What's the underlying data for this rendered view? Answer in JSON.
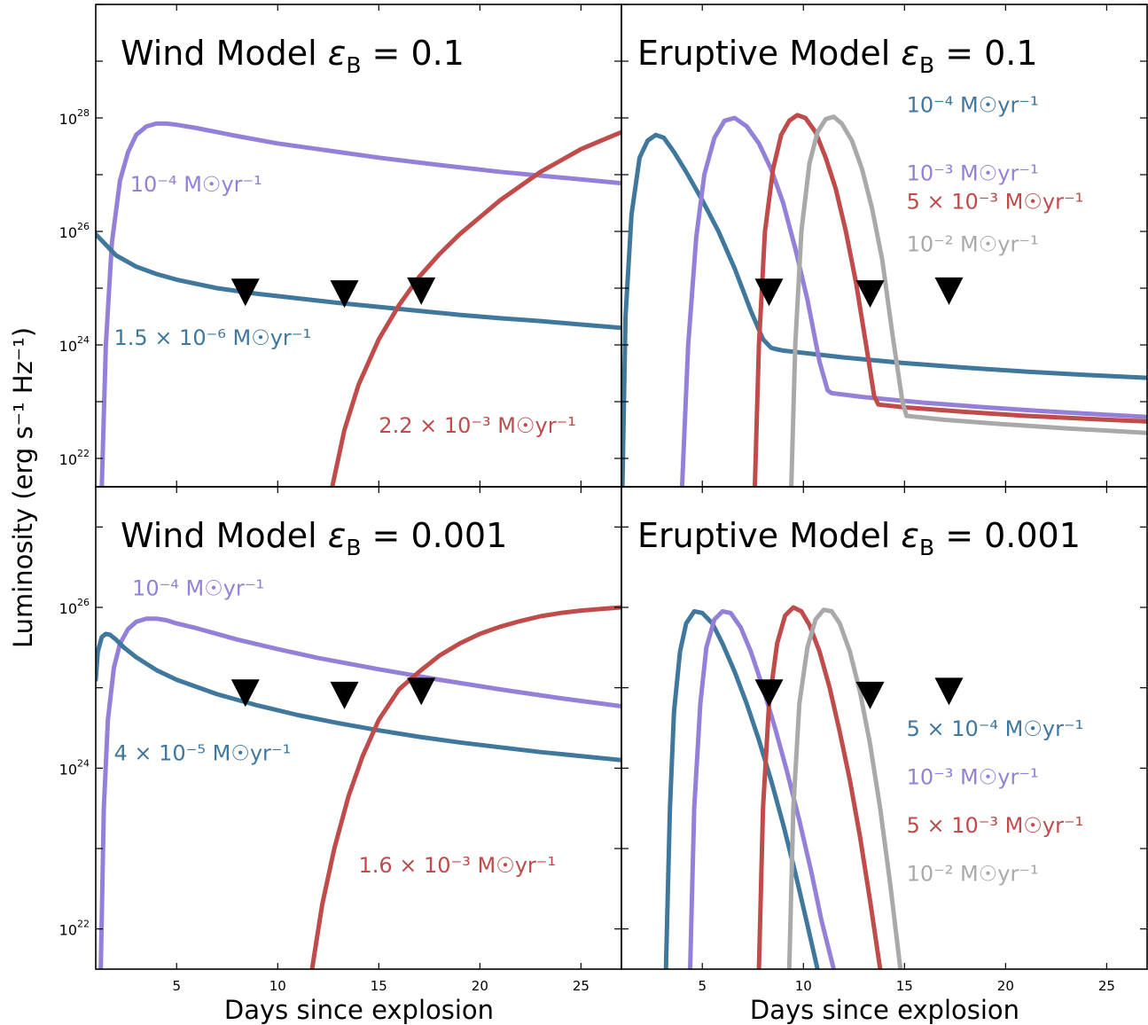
{
  "figure": {
    "ylabel": "Luminosity (erg s⁻¹ Hz⁻¹)",
    "xlabel": "Days since explosion",
    "colors": {
      "blue": "#3f779d",
      "purple": "#9480d8",
      "red": "#bf4b4b",
      "gray": "#a9a9a9",
      "marker": "#000000"
    }
  },
  "chart_data": [
    {
      "type": "line",
      "title_main": "Wind Model",
      "title_eps": "ε",
      "title_sub": "B",
      "title_val": " = 0.1",
      "xlim": [
        1,
        27
      ],
      "ylim_log10": [
        21.5,
        30.0
      ],
      "yscale": "log",
      "xticks": [
        5,
        10,
        15,
        20,
        25
      ],
      "yticks": [
        {
          "pos": 22,
          "base": "10",
          "exp": "22"
        },
        {
          "pos": 24,
          "base": "10",
          "exp": "24"
        },
        {
          "pos": 26,
          "base": "10",
          "exp": "26"
        },
        {
          "pos": 28,
          "base": "10",
          "exp": "28"
        }
      ],
      "series": [
        {
          "color": "#9480d8",
          "x": [
            1.3,
            1.5,
            1.8,
            2.2,
            2.6,
            3.0,
            3.5,
            4.0,
            4.5,
            5.0,
            6,
            8,
            10,
            12,
            15,
            18,
            21,
            24,
            27
          ],
          "log_y": [
            21.5,
            24.0,
            25.8,
            26.9,
            27.4,
            27.7,
            27.85,
            27.9,
            27.9,
            27.88,
            27.82,
            27.68,
            27.55,
            27.45,
            27.3,
            27.17,
            27.05,
            26.95,
            26.85
          ]
        },
        {
          "color": "#3f779d",
          "x": [
            1,
            2,
            3,
            4,
            5,
            7,
            9,
            11,
            13,
            15,
            17,
            19,
            21,
            23,
            25,
            27
          ],
          "log_y": [
            25.95,
            25.58,
            25.38,
            25.25,
            25.15,
            25.0,
            24.9,
            24.82,
            24.74,
            24.67,
            24.6,
            24.53,
            24.47,
            24.42,
            24.36,
            24.3
          ]
        },
        {
          "color": "#bf4b4b",
          "x": [
            12.7,
            13.3,
            14.0,
            15.0,
            16.0,
            17.0,
            18.0,
            19.0,
            20.0,
            21.0,
            22.0,
            23.0,
            24.0,
            25.0,
            26.0,
            27.0
          ],
          "log_y": [
            21.5,
            22.5,
            23.3,
            24.1,
            24.7,
            25.2,
            25.6,
            25.95,
            26.25,
            26.55,
            26.8,
            27.05,
            27.25,
            27.45,
            27.6,
            27.75
          ]
        }
      ],
      "markers": {
        "x": [
          8.4,
          13.3,
          17.1
        ],
        "log_y": [
          24.95,
          24.92,
          24.97
        ]
      },
      "annotations": [
        {
          "text": "10⁻⁴ M☉yr⁻¹",
          "x": 2.7,
          "log_y": 26.7,
          "color": "#9480d8"
        },
        {
          "text": "1.5 × 10⁻⁶ M☉yr⁻¹",
          "x": 1.9,
          "log_y": 24.0,
          "color": "#3f779d"
        },
        {
          "text": "2.2 × 10⁻³ M☉yr⁻¹",
          "x": 15.0,
          "log_y": 22.45,
          "color": "#bf4b4b"
        }
      ]
    },
    {
      "type": "line",
      "title_main": "Eruptive Model",
      "title_eps": "ε",
      "title_sub": "B",
      "title_val": " = 0.1",
      "xlim": [
        1,
        27
      ],
      "ylim_log10": [
        21.5,
        30.0
      ],
      "yscale": "log",
      "xticks": [
        5,
        10,
        15,
        20,
        25
      ],
      "yticks": [],
      "series": [
        {
          "color": "#3f779d",
          "x": [
            1.05,
            1.2,
            1.5,
            1.9,
            2.3,
            2.7,
            3.1,
            3.6,
            4.2,
            5.0,
            5.8,
            6.6,
            7.4,
            8.0,
            8.4,
            8.6,
            9,
            12,
            15,
            18,
            21,
            24,
            27
          ],
          "log_y": [
            21.5,
            24.5,
            26.3,
            27.3,
            27.6,
            27.7,
            27.65,
            27.4,
            27.05,
            26.55,
            26.0,
            25.35,
            24.6,
            24.1,
            23.95,
            23.93,
            23.9,
            23.78,
            23.68,
            23.6,
            23.53,
            23.47,
            23.42
          ]
        },
        {
          "color": "#9480d8",
          "x": [
            4.0,
            4.3,
            4.7,
            5.1,
            5.6,
            6.1,
            6.6,
            7.2,
            7.8,
            8.4,
            9.0,
            9.6,
            10.2,
            10.8,
            11.2,
            11.4,
            13,
            16,
            19,
            22,
            25,
            27
          ],
          "log_y": [
            21.5,
            24.0,
            25.9,
            27.0,
            27.65,
            27.95,
            28.0,
            27.85,
            27.55,
            27.1,
            26.5,
            25.7,
            24.8,
            23.7,
            23.2,
            23.15,
            23.08,
            22.98,
            22.9,
            22.83,
            22.77,
            22.73
          ]
        },
        {
          "color": "#bf4b4b",
          "x": [
            7.6,
            7.8,
            8.1,
            8.5,
            8.9,
            9.3,
            9.7,
            10.1,
            10.6,
            11.1,
            11.6,
            12.1,
            12.6,
            13.1,
            13.5,
            13.7,
            15,
            18,
            21,
            24,
            27
          ],
          "log_y": [
            21.5,
            24.0,
            26.0,
            27.1,
            27.7,
            27.95,
            28.05,
            28.0,
            27.75,
            27.3,
            26.75,
            26.0,
            25.1,
            24.0,
            23.1,
            22.95,
            22.9,
            22.82,
            22.75,
            22.7,
            22.65
          ]
        },
        {
          "color": "#a9a9a9",
          "x": [
            9.4,
            9.6,
            9.9,
            10.3,
            10.7,
            11.1,
            11.5,
            11.9,
            12.4,
            12.9,
            13.4,
            13.9,
            14.4,
            14.9,
            15.1,
            17,
            20,
            23,
            27
          ],
          "log_y": [
            21.5,
            24.0,
            26.0,
            27.2,
            27.75,
            27.98,
            28.02,
            27.9,
            27.6,
            27.1,
            26.4,
            25.5,
            24.2,
            23.0,
            22.75,
            22.68,
            22.6,
            22.53,
            22.45
          ]
        }
      ],
      "markers": {
        "x": [
          8.3,
          13.3,
          17.2
        ],
        "log_y": [
          24.95,
          24.92,
          24.97
        ]
      },
      "annotations": [
        {
          "text": "10⁻⁴ M☉yr⁻¹",
          "x": 15.1,
          "log_y": 28.1,
          "color": "#3f779d"
        },
        {
          "text": "10⁻³ M☉yr⁻¹",
          "x": 15.1,
          "log_y": 26.9,
          "color": "#9480d8"
        },
        {
          "text": "5 × 10⁻³ M☉yr⁻¹",
          "x": 15.1,
          "log_y": 26.4,
          "color": "#bf4b4b"
        },
        {
          "text": "10⁻² M☉yr⁻¹",
          "x": 15.1,
          "log_y": 25.65,
          "color": "#a9a9a9"
        }
      ]
    },
    {
      "type": "line",
      "title_main": "Wind Model",
      "title_eps": "ε",
      "title_sub": "B",
      "title_val": " = 0.001",
      "xlim": [
        1,
        27
      ],
      "ylim_log10": [
        21.5,
        27.5
      ],
      "yscale": "log",
      "xticks": [
        5,
        10,
        15,
        20,
        25
      ],
      "yticks": [
        {
          "pos": 22,
          "base": "10",
          "exp": "22"
        },
        {
          "pos": 24,
          "base": "10",
          "exp": "24"
        },
        {
          "pos": 26,
          "base": "10",
          "exp": "26"
        }
      ],
      "series": [
        {
          "color": "#9480d8",
          "x": [
            1.25,
            1.4,
            1.6,
            1.9,
            2.2,
            2.6,
            3.0,
            3.5,
            4.0,
            4.5,
            5,
            6,
            8,
            10,
            12,
            15,
            18,
            21,
            24,
            27
          ],
          "log_y": [
            21.5,
            23.5,
            24.6,
            25.25,
            25.55,
            25.73,
            25.82,
            25.86,
            25.86,
            25.84,
            25.8,
            25.74,
            25.6,
            25.48,
            25.37,
            25.23,
            25.1,
            24.98,
            24.87,
            24.77
          ]
        },
        {
          "color": "#3f779d",
          "x": [
            1.0,
            1.1,
            1.3,
            1.5,
            1.7,
            2.0,
            2.4,
            3,
            4,
            5,
            7,
            9,
            11,
            13,
            15,
            17,
            19,
            21,
            23,
            25,
            27
          ],
          "log_y": [
            25.1,
            25.45,
            25.63,
            25.67,
            25.66,
            25.6,
            25.5,
            25.38,
            25.22,
            25.1,
            24.92,
            24.78,
            24.66,
            24.56,
            24.47,
            24.39,
            24.32,
            24.26,
            24.2,
            24.15,
            24.1
          ]
        },
        {
          "color": "#bf4b4b",
          "x": [
            11.7,
            12.2,
            12.8,
            13.5,
            14.2,
            15.0,
            16.0,
            17.0,
            18.0,
            19.0,
            20.0,
            21.0,
            22.0,
            23.0,
            24.0,
            25.0,
            26.0,
            27.0
          ],
          "log_y": [
            21.5,
            22.3,
            23.0,
            23.65,
            24.15,
            24.6,
            24.98,
            25.2,
            25.4,
            25.55,
            25.67,
            25.76,
            25.83,
            25.89,
            25.93,
            25.96,
            25.98,
            26.0
          ]
        }
      ],
      "markers": {
        "x": [
          8.4,
          13.3,
          17.1
        ],
        "log_y": [
          24.95,
          24.92,
          24.97
        ]
      },
      "annotations": [
        {
          "text": "10⁻⁴ M☉yr⁻¹",
          "x": 2.8,
          "log_y": 26.15,
          "color": "#9480d8"
        },
        {
          "text": "4 × 10⁻⁵ M☉yr⁻¹",
          "x": 1.9,
          "log_y": 24.1,
          "color": "#3f779d"
        },
        {
          "text": "1.6 × 10⁻³ M☉yr⁻¹",
          "x": 14.0,
          "log_y": 22.7,
          "color": "#bf4b4b"
        }
      ]
    },
    {
      "type": "line",
      "title_main": "Eruptive Model",
      "title_eps": "ε",
      "title_sub": "B",
      "title_val": " = 0.001",
      "xlim": [
        1,
        27
      ],
      "ylim_log10": [
        21.5,
        27.5
      ],
      "yscale": "log",
      "xticks": [
        5,
        10,
        15,
        20,
        25
      ],
      "yticks": [],
      "series": [
        {
          "color": "#3f779d",
          "x": [
            3.2,
            3.4,
            3.6,
            3.9,
            4.2,
            4.6,
            5.0,
            5.5,
            6.0,
            6.6,
            7.2,
            7.8,
            8.4,
            9.0,
            9.6,
            10.2,
            10.7
          ],
          "log_y": [
            21.5,
            23.5,
            24.7,
            25.45,
            25.8,
            25.95,
            25.93,
            25.8,
            25.55,
            25.2,
            24.8,
            24.35,
            23.85,
            23.3,
            22.7,
            22.05,
            21.5
          ]
        },
        {
          "color": "#9480d8",
          "x": [
            4.4,
            4.6,
            4.9,
            5.2,
            5.6,
            6.0,
            6.4,
            6.9,
            7.4,
            8.0,
            8.6,
            9.2,
            9.8,
            10.4,
            10.9,
            11.5
          ],
          "log_y": [
            21.5,
            23.5,
            24.8,
            25.5,
            25.85,
            25.95,
            25.93,
            25.75,
            25.45,
            25.0,
            24.5,
            23.95,
            23.35,
            22.7,
            22.1,
            21.5
          ]
        },
        {
          "color": "#bf4b4b",
          "x": [
            7.8,
            8.0,
            8.3,
            8.7,
            9.1,
            9.5,
            9.9,
            10.3,
            10.8,
            11.3,
            11.8,
            12.3,
            12.8,
            13.3,
            13.8
          ],
          "log_y": [
            21.5,
            23.5,
            24.8,
            25.55,
            25.9,
            26.0,
            25.95,
            25.78,
            25.45,
            25.0,
            24.45,
            23.85,
            23.15,
            22.35,
            21.5
          ]
        },
        {
          "color": "#a9a9a9",
          "x": [
            9.3,
            9.5,
            9.8,
            10.2,
            10.6,
            11.0,
            11.4,
            11.8,
            12.3,
            12.8,
            13.3,
            13.8,
            14.3,
            14.8
          ],
          "log_y": [
            21.5,
            23.5,
            24.8,
            25.5,
            25.85,
            25.97,
            25.95,
            25.8,
            25.45,
            24.95,
            24.3,
            23.5,
            22.55,
            21.5
          ]
        }
      ],
      "markers": {
        "x": [
          8.3,
          13.3,
          17.2
        ],
        "log_y": [
          24.95,
          24.92,
          24.97
        ]
      },
      "annotations": [
        {
          "text": "5 × 10⁻⁴ M☉yr⁻¹",
          "x": 15.1,
          "log_y": 24.4,
          "color": "#3f779d"
        },
        {
          "text": "10⁻³ M☉yr⁻¹",
          "x": 15.1,
          "log_y": 23.8,
          "color": "#9480d8"
        },
        {
          "text": "5 × 10⁻³ M☉yr⁻¹",
          "x": 15.1,
          "log_y": 23.2,
          "color": "#bf4b4b"
        },
        {
          "text": "10⁻² M☉yr⁻¹",
          "x": 15.1,
          "log_y": 22.6,
          "color": "#a9a9a9"
        }
      ]
    }
  ]
}
